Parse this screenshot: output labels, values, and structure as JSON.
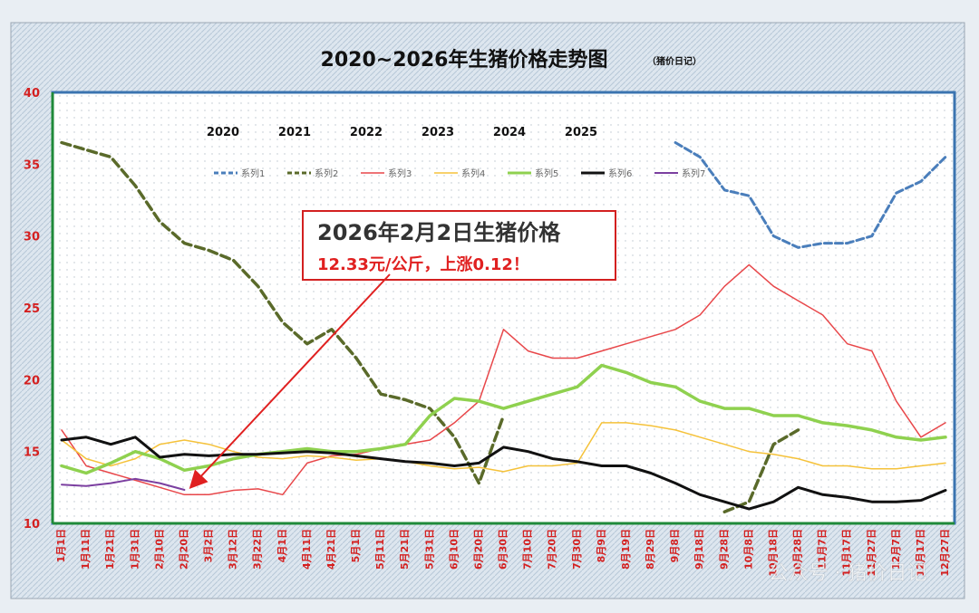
{
  "chart_data": {
    "type": "line",
    "title": "2020~2026年生猪价格走势图",
    "title_note": "（猪价日记）",
    "ylim": [
      10,
      40
    ],
    "yticks": [
      10,
      15,
      20,
      25,
      30,
      35,
      40
    ],
    "x_count": 37,
    "x_labels": [
      "1月1日",
      "1月11日",
      "1月21日",
      "1月31日",
      "2月10日",
      "2月20日",
      "3月2日",
      "3月12日",
      "3月22日",
      "4月1日",
      "4月11日",
      "4月21日",
      "5月1日",
      "5月11日",
      "5月21日",
      "5月31日",
      "6月10日",
      "6月20日",
      "6月30日",
      "7月10日",
      "7月20日",
      "7月30日",
      "8月9日",
      "8月19日",
      "8月29日",
      "9月8日",
      "9月18日",
      "9月28日",
      "10月8日",
      "10月18日",
      "10月28日",
      "11月7日",
      "11月17日",
      "11月27日",
      "12月7日",
      "12月17日",
      "12月27日"
    ],
    "year_labels": [
      "2020",
      "2021",
      "2022",
      "2023",
      "2024",
      "2025"
    ],
    "series": [
      {
        "name": "系列1",
        "color": "#4a7ebb",
        "dash": "8,4",
        "width": 3,
        "values": [
          null,
          null,
          null,
          null,
          null,
          null,
          null,
          null,
          null,
          null,
          null,
          null,
          null,
          null,
          null,
          null,
          null,
          null,
          null,
          null,
          null,
          null,
          null,
          null,
          null,
          36.5,
          35.5,
          33.2,
          32.8,
          30.0,
          29.2,
          29.5,
          29.5,
          30.0,
          33.0,
          33.8,
          35.5
        ]
      },
      {
        "name": "系列2",
        "color": "#5a6a2a",
        "dash": "10,5",
        "width": 3.5,
        "values": [
          36.5,
          36.0,
          35.5,
          33.5,
          31.0,
          29.5,
          29.0,
          28.3,
          26.5,
          24.0,
          22.5,
          23.5,
          21.5,
          19.0,
          18.6,
          18.0,
          16.0,
          12.8,
          17.5,
          null,
          null,
          null,
          null,
          null,
          null,
          null,
          null,
          10.8,
          11.5,
          15.5,
          16.5,
          null,
          null,
          null,
          null,
          null,
          null
        ]
      },
      {
        "name": "系列3",
        "color": "#e8474a",
        "dash": "",
        "width": 1.5,
        "values": [
          16.5,
          14.0,
          13.5,
          13.0,
          12.5,
          12.0,
          12.0,
          12.3,
          12.4,
          12.0,
          14.2,
          14.7,
          14.8,
          15.2,
          15.5,
          15.8,
          17.0,
          18.5,
          23.5,
          22.0,
          21.5,
          21.5,
          22.0,
          22.5,
          23.0,
          23.5,
          24.5,
          26.5,
          28.0,
          26.5,
          25.5,
          24.5,
          22.5,
          22.0,
          18.5,
          16.0,
          17.0
        ]
      },
      {
        "name": "系列4",
        "color": "#f5c23a",
        "dash": "",
        "width": 1.5,
        "values": [
          15.8,
          14.5,
          14.0,
          14.5,
          15.5,
          15.8,
          15.5,
          15.0,
          14.6,
          14.5,
          14.7,
          14.6,
          14.4,
          14.5,
          14.3,
          14.0,
          13.8,
          13.9,
          13.6,
          14.0,
          14.0,
          14.2,
          17.0,
          17.0,
          16.8,
          16.5,
          16.0,
          15.5,
          15.0,
          14.8,
          14.5,
          14.0,
          14.0,
          13.8,
          13.8,
          14.0,
          14.2
        ]
      },
      {
        "name": "系列5",
        "color": "#8fd14f",
        "dash": "",
        "width": 3.5,
        "values": [
          14.0,
          13.5,
          14.2,
          15.0,
          14.5,
          13.7,
          14.0,
          14.5,
          14.8,
          15.0,
          15.2,
          15.0,
          15.0,
          15.2,
          15.5,
          17.5,
          18.7,
          18.5,
          18.0,
          18.5,
          19.0,
          19.5,
          21.0,
          20.5,
          19.8,
          19.5,
          18.5,
          18.0,
          18.0,
          17.5,
          17.5,
          17.0,
          16.8,
          16.5,
          16.0,
          15.8,
          16.0
        ]
      },
      {
        "name": "系列6",
        "color": "#111111",
        "dash": "",
        "width": 3,
        "values": [
          15.8,
          16.0,
          15.5,
          16.0,
          14.6,
          14.8,
          14.7,
          14.8,
          14.8,
          14.9,
          15.0,
          14.9,
          14.7,
          14.5,
          14.3,
          14.2,
          14.0,
          14.2,
          15.3,
          15.0,
          14.5,
          14.3,
          14.0,
          14.0,
          13.5,
          12.8,
          12.0,
          11.5,
          11.0,
          11.5,
          12.5,
          12.0,
          11.8,
          11.5,
          11.5,
          11.6,
          12.3
        ]
      },
      {
        "name": "系列7",
        "color": "#7b3fa0",
        "dash": "",
        "width": 2,
        "values": [
          12.7,
          12.6,
          12.8,
          13.1,
          12.8,
          12.33,
          null,
          null,
          null,
          null,
          null,
          null,
          null,
          null,
          null,
          null,
          null,
          null,
          null,
          null,
          null,
          null,
          null,
          null,
          null,
          null,
          null,
          null,
          null,
          null,
          null,
          null,
          null,
          null,
          null,
          null,
          null
        ]
      }
    ],
    "annotation": {
      "headline": "2026年2月2日生猪价格",
      "detail": "12.33元/公斤，上涨0.12！",
      "point_index": 5,
      "point_value": 12.33
    }
  },
  "watermark": "公众号 · 猪价日记"
}
